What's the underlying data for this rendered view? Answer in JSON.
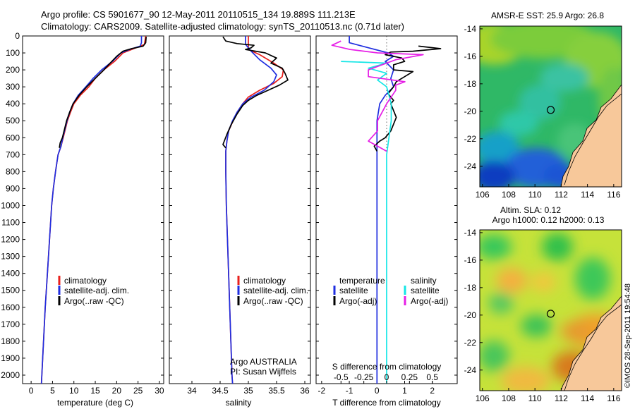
{
  "header": {
    "line1": "Argo profile: CS 5901677_90 12-May-2011 20110515_134 19.889S 111.213E",
    "line2": "Climatology: CARS2009. Satellite-adjusted climatology: synTS_20110513.nc (0.71d later)"
  },
  "depth_ticks": [
    "0",
    "100",
    "200",
    "300",
    "400",
    "500",
    "600",
    "700",
    "800",
    "900",
    "1000",
    "1100",
    "1200",
    "1300",
    "1400",
    "1500",
    "1600",
    "1700",
    "1800",
    "1900",
    "2000"
  ],
  "colors": {
    "climatology": "#e8201c",
    "satellite": "#1f2ee0",
    "argo": "#000000",
    "sat_salinity": "#14e6e6",
    "argo_salinity": "#e61ee6",
    "land": "#f7c89a"
  },
  "chart_data": [
    {
      "type": "line",
      "id": "temperature",
      "xlabel": "temperature (deg C)",
      "ylabel": "",
      "xlim": [
        -2,
        31
      ],
      "ylim": [
        2050,
        0
      ],
      "xticks": [
        "0",
        "5",
        "10",
        "15",
        "20",
        "25",
        "30"
      ],
      "legend": {
        "placement": "bottom-center",
        "items": [
          "climatology",
          "satellite-adj. clim.",
          "Argo(..raw -QC)"
        ]
      },
      "series": [
        {
          "name": "climatology",
          "color": "#e8201c",
          "points": [
            [
              26.8,
              0
            ],
            [
              26.5,
              50
            ],
            [
              24.5,
              70
            ],
            [
              21.5,
              100
            ],
            [
              19.5,
              150
            ],
            [
              17,
              200
            ],
            [
              15,
              250
            ],
            [
              13.5,
              300
            ],
            [
              11.5,
              350
            ],
            [
              10,
              400
            ],
            [
              9.2,
              450
            ],
            [
              8.5,
              500
            ],
            [
              8,
              550
            ],
            [
              7.5,
              600
            ],
            [
              7,
              650
            ],
            [
              6.3,
              700
            ],
            [
              5.7,
              800
            ],
            [
              5.2,
              900
            ],
            [
              4.8,
              1000
            ],
            [
              4.3,
              1200
            ],
            [
              3.8,
              1400
            ],
            [
              3.3,
              1600
            ],
            [
              2.9,
              1800
            ],
            [
              2.5,
              2000
            ],
            [
              2.4,
              2050
            ]
          ]
        },
        {
          "name": "satellite-adj. clim.",
          "color": "#1f2ee0",
          "points": [
            [
              25.8,
              0
            ],
            [
              25.8,
              40
            ],
            [
              25.5,
              60
            ],
            [
              23,
              80
            ],
            [
              21,
              100
            ],
            [
              19,
              150
            ],
            [
              16.5,
              200
            ],
            [
              14.5,
              250
            ],
            [
              12.8,
              300
            ],
            [
              11,
              350
            ],
            [
              9.8,
              400
            ],
            [
              9,
              450
            ],
            [
              8.4,
              500
            ],
            [
              7.9,
              550
            ],
            [
              7.4,
              600
            ],
            [
              7,
              650
            ],
            [
              6.3,
              700
            ],
            [
              5.7,
              800
            ],
            [
              5.2,
              900
            ],
            [
              4.8,
              1000
            ],
            [
              4.3,
              1200
            ],
            [
              3.8,
              1400
            ],
            [
              3.3,
              1600
            ],
            [
              2.9,
              1800
            ],
            [
              2.5,
              2000
            ],
            [
              2.4,
              2050
            ]
          ]
        },
        {
          "name": "Argo(..raw -QC)",
          "color": "#000000",
          "points": [
            [
              26.9,
              5
            ],
            [
              26.8,
              40
            ],
            [
              26.2,
              60
            ],
            [
              23.5,
              75
            ],
            [
              21.5,
              90
            ],
            [
              20,
              120
            ],
            [
              18.5,
              160
            ],
            [
              17,
              200
            ],
            [
              15,
              250
            ],
            [
              13,
              300
            ],
            [
              11.2,
              350
            ],
            [
              9.8,
              400
            ],
            [
              9,
              450
            ],
            [
              8.3,
              500
            ],
            [
              7.8,
              550
            ],
            [
              7.3,
              600
            ],
            [
              6.8,
              630
            ],
            [
              6.6,
              660
            ]
          ]
        }
      ]
    },
    {
      "type": "line",
      "id": "salinity",
      "xlabel": "salinity",
      "ylabel": "",
      "xlim": [
        33.6,
        36.1
      ],
      "ylim": [
        2050,
        0
      ],
      "xticks": [
        "34",
        "34.5",
        "35",
        "35.5",
        "36"
      ],
      "legend": {
        "placement": "bottom-center",
        "items": [
          "climatology",
          "satellite-adj. clim.",
          "Argo(..raw -QC)"
        ]
      },
      "annotation": [
        "Argo AUSTRALIA",
        "PI: Susan Wijffels"
      ],
      "series": [
        {
          "name": "climatology",
          "color": "#e8201c",
          "points": [
            [
              35.0,
              0
            ],
            [
              35.0,
              60
            ],
            [
              35.0,
              80
            ],
            [
              35.2,
              110
            ],
            [
              35.45,
              160
            ],
            [
              35.62,
              200
            ],
            [
              35.6,
              240
            ],
            [
              35.45,
              280
            ],
            [
              35.2,
              320
            ],
            [
              35.0,
              360
            ],
            [
              34.9,
              400
            ],
            [
              34.8,
              450
            ],
            [
              34.73,
              500
            ],
            [
              34.65,
              560
            ],
            [
              34.62,
              620
            ],
            [
              34.6,
              680
            ],
            [
              34.6,
              800
            ],
            [
              34.61,
              1000
            ],
            [
              34.63,
              1200
            ],
            [
              34.65,
              1400
            ],
            [
              34.67,
              1600
            ],
            [
              34.69,
              1800
            ],
            [
              34.71,
              2000
            ],
            [
              34.72,
              2050
            ]
          ]
        },
        {
          "name": "satellite-adj. clim.",
          "color": "#1f2ee0",
          "points": [
            [
              34.95,
              0
            ],
            [
              34.95,
              50
            ],
            [
              35.05,
              90
            ],
            [
              35.2,
              140
            ],
            [
              35.4,
              190
            ],
            [
              35.5,
              230
            ],
            [
              35.45,
              270
            ],
            [
              35.28,
              320
            ],
            [
              35.05,
              360
            ],
            [
              34.9,
              400
            ],
            [
              34.8,
              450
            ],
            [
              34.72,
              500
            ],
            [
              34.65,
              560
            ],
            [
              34.62,
              620
            ],
            [
              34.6,
              680
            ],
            [
              34.6,
              800
            ],
            [
              34.61,
              1000
            ],
            [
              34.63,
              1200
            ],
            [
              34.65,
              1400
            ],
            [
              34.67,
              1600
            ],
            [
              34.69,
              1800
            ],
            [
              34.71,
              2000
            ],
            [
              34.72,
              2050
            ]
          ]
        },
        {
          "name": "Argo(..raw -QC)",
          "color": "#000000",
          "points": [
            [
              34.55,
              5
            ],
            [
              34.6,
              30
            ],
            [
              34.8,
              45
            ],
            [
              35.1,
              55
            ],
            [
              35.05,
              70
            ],
            [
              34.95,
              80
            ],
            [
              35.3,
              100
            ],
            [
              35.5,
              130
            ],
            [
              35.4,
              160
            ],
            [
              35.6,
              190
            ],
            [
              35.65,
              220
            ],
            [
              35.7,
              260
            ],
            [
              35.55,
              290
            ],
            [
              35.35,
              320
            ],
            [
              35.15,
              350
            ],
            [
              35.0,
              380
            ],
            [
              34.9,
              410
            ],
            [
              34.8,
              460
            ],
            [
              34.7,
              520
            ],
            [
              34.62,
              580
            ],
            [
              34.55,
              640
            ],
            [
              34.6,
              660
            ]
          ]
        }
      ]
    },
    {
      "type": "line",
      "id": "difference",
      "xlabel": "T difference from climatology",
      "xlabel_top": "S difference from climatology",
      "ylabel": "",
      "xlim": [
        -2.2,
        2.9
      ],
      "ylim": [
        2050,
        0
      ],
      "xticks": [
        "-2",
        "-1",
        "0",
        "1",
        "2"
      ],
      "xticks_top": [
        "-0.5",
        "-0.25",
        "0",
        "0.25",
        "0.5"
      ],
      "legend": {
        "placement": "bottom",
        "temperature_title": "temperature",
        "salinity_title": "salinity",
        "temperature_items": [
          "satellite",
          "Argo(-adj)"
        ],
        "salinity_items": [
          "satellite",
          "Argo(-adj)"
        ]
      },
      "series": [
        {
          "name": "satellite",
          "group": "temperature",
          "color": "#1f2ee0",
          "points": [
            [
              -1.0,
              0
            ],
            [
              -1.0,
              40
            ],
            [
              -0.3,
              70
            ],
            [
              0.4,
              100
            ],
            [
              0.6,
              120
            ],
            [
              0.3,
              150
            ],
            [
              0.6,
              200
            ],
            [
              0.5,
              250
            ],
            [
              0.6,
              300
            ],
            [
              0.3,
              350
            ],
            [
              0.1,
              400
            ],
            [
              0.0,
              500
            ],
            [
              0.0,
              700
            ],
            [
              0.0,
              1000
            ],
            [
              0.0,
              1500
            ],
            [
              0.0,
              2050
            ]
          ]
        },
        {
          "name": "Argo(-adj)",
          "group": "temperature",
          "color": "#000000",
          "points": [
            [
              1.5,
              60
            ],
            [
              2.3,
              75
            ],
            [
              1.3,
              90
            ],
            [
              0.5,
              95
            ],
            [
              0.3,
              110
            ],
            [
              0.9,
              130
            ],
            [
              1.0,
              150
            ],
            [
              0.6,
              170
            ],
            [
              0.6,
              200
            ],
            [
              1.3,
              210
            ],
            [
              1.0,
              240
            ],
            [
              0.7,
              270
            ],
            [
              0.6,
              300
            ],
            [
              0.4,
              340
            ],
            [
              0.6,
              380
            ],
            [
              0.5,
              400
            ],
            [
              0.7,
              480
            ],
            [
              0.5,
              560
            ],
            [
              0.3,
              600
            ],
            [
              0.1,
              620
            ],
            [
              -0.1,
              650
            ],
            [
              0.0,
              680
            ]
          ]
        },
        {
          "name": "satellite",
          "group": "salinity",
          "color": "#14e6e6",
          "points": [
            [
              -0.5,
              150
            ],
            [
              0.0,
              160
            ],
            [
              -0.2,
              190
            ],
            [
              0.0,
              220
            ],
            [
              -0.1,
              260
            ],
            [
              0.0,
              300
            ],
            [
              0.05,
              400
            ],
            [
              0.05,
              500
            ],
            [
              0.0,
              700
            ],
            [
              0.0,
              1000
            ],
            [
              0.0,
              1500
            ],
            [
              0.0,
              2050
            ]
          ]
        },
        {
          "name": "Argo(-adj)",
          "group": "salinity",
          "color": "#e61ee6",
          "points": [
            [
              -0.5,
              30
            ],
            [
              -0.6,
              55
            ],
            [
              -0.4,
              80
            ],
            [
              -0.1,
              100
            ],
            [
              0.4,
              110
            ],
            [
              0.1,
              140
            ],
            [
              -0.2,
              200
            ],
            [
              -0.2,
              240
            ],
            [
              0.2,
              270
            ],
            [
              0.1,
              290
            ],
            [
              0.1,
              320
            ],
            [
              0.0,
              400
            ],
            [
              -0.1,
              500
            ],
            [
              -0.1,
              560
            ],
            [
              -0.2,
              620
            ],
            [
              -0.1,
              650
            ],
            [
              0.0,
              680
            ]
          ]
        }
      ]
    },
    {
      "type": "heatmap",
      "id": "sst-map",
      "title": "AMSR-E SST: 25.9 Argo: 26.8",
      "xlim": [
        105.8,
        116.6
      ],
      "ylim": [
        -25.5,
        -13.8
      ],
      "xticks": [
        "106",
        "108",
        "110",
        "112",
        "114",
        "116"
      ],
      "yticks": [
        "-14",
        "-16",
        "-18",
        "-20",
        "-22",
        "-24"
      ],
      "float_position": {
        "lon": 111.2,
        "lat": -19.9
      }
    },
    {
      "type": "heatmap",
      "id": "sla-map",
      "title_line1": "Altim. SLA: 0.12",
      "title_line2": "Argo h1000: 0.12 h2000: 0.13",
      "xlim": [
        105.8,
        116.6
      ],
      "ylim": [
        -25.5,
        -13.8
      ],
      "xticks": [
        "106",
        "108",
        "110",
        "112",
        "114",
        "116"
      ],
      "yticks": [
        "-14",
        "-16",
        "-18",
        "-20",
        "-22",
        "-24"
      ],
      "float_position": {
        "lon": 111.2,
        "lat": -19.9
      }
    }
  ],
  "credit": "©IMOS 28-Sep-2011 19:54:48"
}
